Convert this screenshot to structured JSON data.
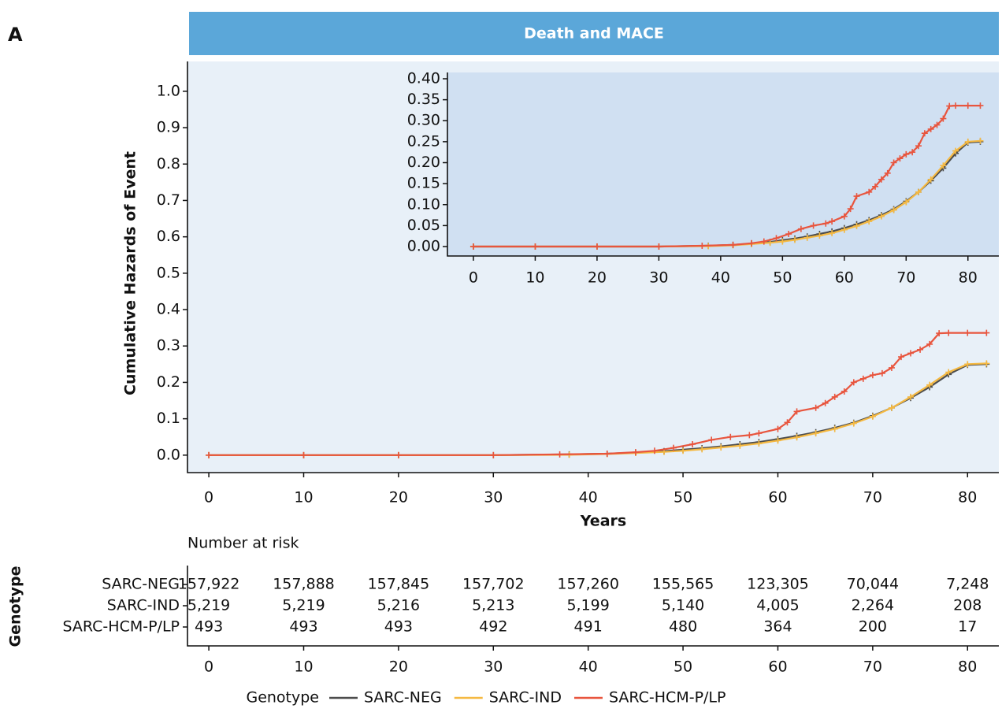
{
  "chart_data": {
    "type": "line",
    "panel_label": "A",
    "title": "Death and MACE",
    "x_label": "Years",
    "y_label": "Cumulative Hazards of Event",
    "xlim": [
      -2.25,
      83.3
    ],
    "ylim": [
      -0.048,
      1.082
    ],
    "xticks": [
      0,
      10,
      20,
      30,
      40,
      50,
      60,
      70,
      80
    ],
    "yticks": [
      {
        "value": 0,
        "label": "0.0"
      },
      0.1,
      0.2,
      0.3,
      0.4,
      0.5,
      0.6,
      0.7,
      0.8,
      0.9,
      {
        "value": 1,
        "label": "1.0"
      }
    ],
    "legend_title": "Genotype",
    "series": [
      {
        "name": "SARC-NEG",
        "color": "#4d4d4d",
        "x": [
          0,
          10,
          20,
          30,
          38,
          42,
          45,
          48,
          50,
          52,
          54,
          56,
          58,
          60,
          62,
          64,
          66,
          68,
          70,
          72,
          74,
          76,
          78,
          80,
          82
        ],
        "values": [
          0,
          0,
          0,
          0,
          0.002,
          0.004,
          0.007,
          0.011,
          0.015,
          0.019,
          0.024,
          0.03,
          0.036,
          0.044,
          0.053,
          0.063,
          0.075,
          0.089,
          0.108,
          0.13,
          0.157,
          0.187,
          0.222,
          0.248,
          0.25
        ]
      },
      {
        "name": "SARC-IND",
        "color": "#f5b942",
        "x": [
          0,
          10,
          20,
          30,
          38,
          42,
          45,
          48,
          50,
          52,
          54,
          56,
          58,
          60,
          62,
          64,
          66,
          68,
          70,
          72,
          74,
          76,
          78,
          80,
          82
        ],
        "values": [
          0,
          0,
          0,
          0,
          0.001,
          0.003,
          0.006,
          0.009,
          0.012,
          0.016,
          0.021,
          0.026,
          0.032,
          0.04,
          0.049,
          0.06,
          0.072,
          0.087,
          0.106,
          0.13,
          0.16,
          0.193,
          0.228,
          0.25,
          0.252
        ]
      },
      {
        "name": "SARC-HCM-P/LP",
        "color": "#e8553e",
        "x": [
          0,
          10,
          20,
          30,
          37,
          42,
          45,
          47,
          49,
          51,
          53,
          55,
          57,
          58,
          60,
          61,
          62,
          64,
          65,
          66,
          67,
          68,
          69,
          70,
          71,
          72,
          73,
          74,
          75,
          76,
          77,
          78,
          80,
          82
        ],
        "values": [
          0,
          0,
          0,
          0,
          0.002,
          0.004,
          0.008,
          0.012,
          0.02,
          0.03,
          0.042,
          0.05,
          0.055,
          0.06,
          0.072,
          0.09,
          0.12,
          0.13,
          0.143,
          0.16,
          0.175,
          0.2,
          0.21,
          0.22,
          0.225,
          0.24,
          0.27,
          0.28,
          0.29,
          0.305,
          0.335,
          0.336,
          0.336,
          0.336
        ]
      }
    ],
    "inset": {
      "xlim": [
        -4.2,
        85
      ],
      "ylim": [
        -0.0225,
        0.415
      ],
      "xticks": [
        0,
        10,
        20,
        30,
        40,
        50,
        60,
        70,
        80
      ],
      "yticks": [
        {
          "value": 0,
          "label": "0.00"
        },
        0.05,
        {
          "value": 0.1,
          "label": "0.10"
        },
        0.15,
        {
          "value": 0.2,
          "label": "0.20"
        },
        0.25,
        {
          "value": 0.3,
          "label": "0.30"
        },
        0.35,
        {
          "value": 0.4,
          "label": "0.40"
        }
      ]
    },
    "risk_table": {
      "title": "Number at risk",
      "row_title": "Genotype",
      "rows": [
        {
          "name": "SARC-NEG",
          "values": [
            "157,922",
            "157,888",
            "157,845",
            "157,702",
            "157,260",
            "155,565",
            "123,305",
            "70,044",
            "7,248"
          ]
        },
        {
          "name": "SARC-IND",
          "values": [
            "5,219",
            "5,219",
            "5,216",
            "5,213",
            "5,199",
            "5,140",
            "4,005",
            "2,264",
            "208"
          ]
        },
        {
          "name": "SARC-HCM-P/LP",
          "values": [
            "493",
            "493",
            "493",
            "492",
            "491",
            "480",
            "364",
            "200",
            "17"
          ]
        }
      ]
    }
  }
}
